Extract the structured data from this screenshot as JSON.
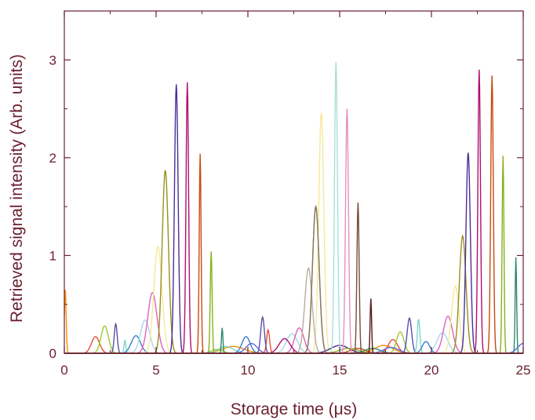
{
  "chart_data": {
    "type": "line",
    "title": "",
    "xlabel": "Storage time (μs)",
    "ylabel": "Retrieved signal intensity (Arb. units)",
    "xlim": [
      0,
      25
    ],
    "ylim": [
      0,
      3.5
    ],
    "xticks": [
      0,
      5,
      10,
      15,
      20,
      25
    ],
    "yticks": [
      0,
      1,
      2,
      3
    ],
    "grid": false,
    "legend": "none",
    "axis_color": "#6b2030",
    "series": [
      {
        "color": "#ff8c00",
        "peaks": [
          [
            0.05,
            0.65,
            0.05
          ],
          [
            9.2,
            0.07,
            0.6
          ],
          [
            17.4,
            0.08,
            0.5
          ]
        ]
      },
      {
        "color": "#e8503a",
        "peaks": [
          [
            1.7,
            0.17,
            0.22
          ],
          [
            11.1,
            0.24,
            0.08
          ],
          [
            17.9,
            0.14,
            0.25
          ]
        ]
      },
      {
        "color": "#9acd32",
        "peaks": [
          [
            2.2,
            0.28,
            0.2
          ],
          [
            8.3,
            0.04,
            0.3
          ],
          [
            18.3,
            0.22,
            0.2
          ]
        ]
      },
      {
        "color": "#5b4ea8",
        "peaks": [
          [
            2.8,
            0.3,
            0.08
          ],
          [
            10.8,
            0.37,
            0.1
          ],
          [
            18.8,
            0.36,
            0.12
          ]
        ]
      },
      {
        "color": "#7fd6c8",
        "peaks": [
          [
            3.3,
            0.13,
            0.05
          ],
          [
            8.8,
            0.07,
            0.4
          ],
          [
            19.3,
            0.35,
            0.07
          ]
        ]
      },
      {
        "color": "#3a7fc8",
        "peaks": [
          [
            3.9,
            0.18,
            0.25
          ],
          [
            9.9,
            0.17,
            0.22
          ],
          [
            19.7,
            0.12,
            0.2
          ]
        ]
      },
      {
        "color": "#a8d8e8",
        "peaks": [
          [
            4.4,
            0.34,
            0.25
          ],
          [
            12.4,
            0.2,
            0.3
          ],
          [
            20.6,
            0.21,
            0.3
          ]
        ]
      },
      {
        "color": "#e060c0",
        "peaks": [
          [
            4.8,
            0.62,
            0.25
          ],
          [
            12.8,
            0.26,
            0.25
          ],
          [
            20.9,
            0.38,
            0.25
          ]
        ]
      },
      {
        "color": "#f5e89a",
        "peaks": [
          [
            5.1,
            1.09,
            0.22
          ],
          [
            14.0,
            2.46,
            0.14
          ],
          [
            21.3,
            0.69,
            0.2
          ]
        ]
      },
      {
        "color": "#9a9020",
        "peaks": [
          [
            5.5,
            1.87,
            0.17
          ],
          [
            13.7,
            1.5,
            0.18
          ],
          [
            21.7,
            1.2,
            0.18
          ]
        ]
      },
      {
        "color": "#4b2f9a",
        "peaks": [
          [
            6.1,
            2.75,
            0.1
          ],
          [
            15.0,
            0.08,
            0.5
          ],
          [
            22.0,
            2.05,
            0.12
          ]
        ]
      },
      {
        "color": "#b01070",
        "peaks": [
          [
            6.7,
            2.77,
            0.07
          ],
          [
            12.0,
            0.15,
            0.3
          ],
          [
            22.6,
            2.9,
            0.07
          ]
        ]
      },
      {
        "color": "#c84a10",
        "peaks": [
          [
            7.4,
            2.04,
            0.05
          ],
          [
            16.0,
            0.05,
            0.4
          ],
          [
            23.3,
            2.84,
            0.07
          ]
        ]
      },
      {
        "color": "#8ab020",
        "peaks": [
          [
            8.0,
            1.04,
            0.05
          ],
          [
            15.5,
            0.05,
            0.5
          ],
          [
            23.9,
            2.02,
            0.05
          ]
        ]
      },
      {
        "color": "#2e8a6a",
        "peaks": [
          [
            8.6,
            0.26,
            0.04
          ],
          [
            16.8,
            0.05,
            0.4
          ],
          [
            24.6,
            0.98,
            0.04
          ]
        ]
      },
      {
        "color": "#5a6ad8",
        "peaks": [
          [
            10.2,
            0.1,
            0.3
          ],
          [
            17.8,
            0.06,
            0.4
          ],
          [
            25.0,
            0.1,
            0.3
          ]
        ]
      },
      {
        "color": "#b8aca0",
        "peaks": [
          [
            13.3,
            0.87,
            0.2
          ]
        ]
      },
      {
        "color": "#8a7a6a",
        "peaks": [
          [
            13.7,
            1.5,
            0.18
          ]
        ]
      },
      {
        "color": "#a8e0d8",
        "peaks": [
          [
            14.8,
            2.98,
            0.08
          ]
        ]
      },
      {
        "color": "#e890b8",
        "peaks": [
          [
            15.4,
            2.5,
            0.08
          ]
        ]
      },
      {
        "color": "#7a4a3a",
        "peaks": [
          [
            16.0,
            1.54,
            0.06
          ]
        ]
      },
      {
        "color": "#5a1a1a",
        "peaks": [
          [
            16.7,
            0.56,
            0.04
          ]
        ]
      }
    ]
  }
}
